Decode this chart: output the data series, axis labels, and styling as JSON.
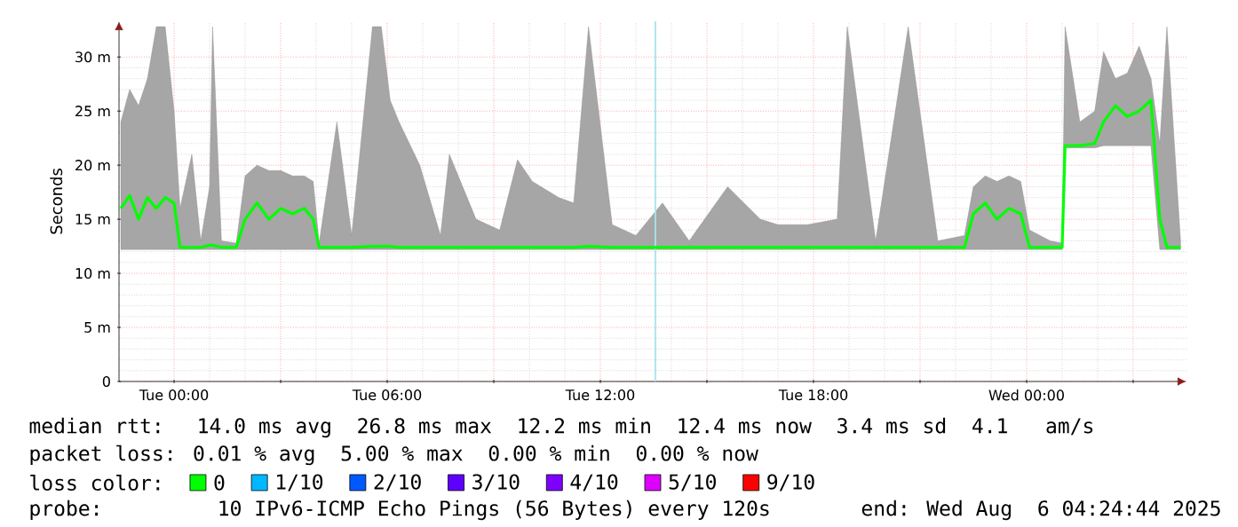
{
  "chart_data": {
    "type": "line",
    "ylabel": "Seconds",
    "legend_title": "loss color:",
    "legend": "bottom",
    "grid": true,
    "xlim": [
      "2025-08-04T22:27",
      "2025-08-06T04:30"
    ],
    "xticks": [
      {
        "value": "2025-08-05T00:00",
        "label": "Tue 00:00"
      },
      {
        "value": "2025-08-05T03:00",
        "label": null
      },
      {
        "value": "2025-08-05T06:00",
        "label": "Tue 06:00"
      },
      {
        "value": "2025-08-05T09:00",
        "label": null
      },
      {
        "value": "2025-08-05T12:00",
        "label": "Tue 12:00"
      },
      {
        "value": "2025-08-05T15:00",
        "label": null
      },
      {
        "value": "2025-08-05T18:00",
        "label": "Tue 18:00"
      },
      {
        "value": "2025-08-05T21:00",
        "label": null
      },
      {
        "value": "2025-08-06T00:00",
        "label": "Wed 00:00"
      },
      {
        "value": "2025-08-06T03:00",
        "label": null
      }
    ],
    "ylim": [
      0,
      33.3
    ],
    "yticks": [
      0,
      {
        "value": 5,
        "label": "5 m"
      },
      {
        "value": 10,
        "label": "10 m"
      },
      {
        "value": 15,
        "label": "15 m"
      },
      {
        "value": 20,
        "label": "20 m"
      },
      {
        "value": 25,
        "label": "25 m"
      },
      {
        "value": 30,
        "label": "30 m"
      }
    ],
    "x": [
      "2025-08-04T22:30",
      "2025-08-04T22:45",
      "2025-08-04T23:00",
      "2025-08-04T23:15",
      "2025-08-04T23:30",
      "2025-08-04T23:45",
      "2025-08-05T00:00",
      "2025-08-05T00:10",
      "2025-08-05T00:30",
      "2025-08-05T00:45",
      "2025-08-05T01:00",
      "2025-08-05T01:05",
      "2025-08-05T01:20",
      "2025-08-05T01:45",
      "2025-08-05T02:00",
      "2025-08-05T02:20",
      "2025-08-05T02:40",
      "2025-08-05T03:00",
      "2025-08-05T03:20",
      "2025-08-05T03:40",
      "2025-08-05T03:55",
      "2025-08-05T04:05",
      "2025-08-05T04:35",
      "2025-08-05T05:00",
      "2025-08-05T05:35",
      "2025-08-05T05:50",
      "2025-08-05T06:05",
      "2025-08-05T06:20",
      "2025-08-05T06:55",
      "2025-08-05T07:30",
      "2025-08-05T07:45",
      "2025-08-05T08:30",
      "2025-08-05T09:10",
      "2025-08-05T09:40",
      "2025-08-05T10:05",
      "2025-08-05T10:50",
      "2025-08-05T11:15",
      "2025-08-05T11:40",
      "2025-08-05T12:20",
      "2025-08-05T13:00",
      "2025-08-05T13:45",
      "2025-08-05T14:30",
      "2025-08-05T15:35",
      "2025-08-05T16:30",
      "2025-08-05T17:00",
      "2025-08-05T17:50",
      "2025-08-05T18:40",
      "2025-08-05T18:57",
      "2025-08-05T19:45",
      "2025-08-05T20:40",
      "2025-08-05T21:30",
      "2025-08-05T22:15",
      "2025-08-05T22:30",
      "2025-08-05T22:50",
      "2025-08-05T23:10",
      "2025-08-05T23:30",
      "2025-08-05T23:50",
      "2025-08-06T00:05",
      "2025-08-06T00:40",
      "2025-08-06T01:00",
      "2025-08-06T01:05",
      "2025-08-06T01:30",
      "2025-08-06T01:55",
      "2025-08-06T02:10",
      "2025-08-06T02:30",
      "2025-08-06T02:50",
      "2025-08-06T03:10",
      "2025-08-06T03:30",
      "2025-08-06T03:45",
      "2025-08-06T03:57",
      "2025-08-06T04:20"
    ],
    "series": [
      {
        "name": "0",
        "color": "#00ff00",
        "values": [
          16,
          17.2,
          15,
          17,
          16,
          17,
          16.5,
          12.4,
          12.4,
          12.4,
          12.6,
          12.6,
          12.4,
          12.4,
          15,
          16.5,
          15,
          16,
          15.5,
          16,
          15,
          12.4,
          12.4,
          12.4,
          12.5,
          12.5,
          12.5,
          12.4,
          12.4,
          12.4,
          12.4,
          12.4,
          12.4,
          12.4,
          12.4,
          12.4,
          12.4,
          12.5,
          12.4,
          12.4,
          12.4,
          12.4,
          12.4,
          12.4,
          12.4,
          12.4,
          12.4,
          12.4,
          12.4,
          12.4,
          12.4,
          12.4,
          15.5,
          16.5,
          15,
          16,
          15.5,
          12.4,
          12.4,
          12.4,
          21.8,
          21.8,
          22,
          24,
          25.5,
          24.5,
          25,
          26,
          15,
          12.4,
          12.4
        ],
        "lower": [
          12.2,
          12.2,
          12.2,
          12.2,
          12.2,
          12.2,
          12.2,
          12.2,
          12.2,
          12.2,
          12.2,
          12.2,
          12.2,
          12.2,
          12.2,
          12.2,
          12.2,
          12.2,
          12.2,
          12.2,
          12.2,
          12.2,
          12.2,
          12.2,
          12.2,
          12.2,
          12.2,
          12.2,
          12.2,
          12.2,
          12.2,
          12.2,
          12.2,
          12.2,
          12.2,
          12.2,
          12.2,
          12.2,
          12.2,
          12.2,
          12.2,
          12.2,
          12.2,
          12.2,
          12.2,
          12.2,
          12.2,
          12.2,
          12.2,
          12.2,
          12.2,
          12.2,
          12.2,
          12.2,
          12.2,
          12.2,
          12.2,
          12.2,
          12.2,
          12.2,
          21.6,
          21.6,
          21.6,
          21.8,
          21.8,
          21.8,
          21.8,
          21.8,
          12.2,
          12.2,
          12.2
        ],
        "upper": [
          24,
          27,
          25.5,
          28,
          32.8,
          32.8,
          25,
          16,
          21,
          13,
          18,
          32.8,
          13,
          12.8,
          19,
          20,
          19.5,
          19.5,
          19,
          19,
          18.5,
          12.8,
          24,
          13.5,
          32.8,
          32.8,
          26,
          24,
          20,
          13.5,
          21,
          15,
          14,
          20.5,
          18.5,
          17,
          16.5,
          32.8,
          14.5,
          13.5,
          16.5,
          13,
          18,
          15,
          14.5,
          14.5,
          15,
          32.8,
          13,
          32.8,
          13,
          13.5,
          18,
          19,
          18.5,
          19,
          18.5,
          14,
          13,
          12.8,
          32.8,
          24,
          25,
          30.5,
          28,
          28.5,
          31,
          28,
          22,
          32.8,
          13
        ]
      },
      {
        "name": "1/10",
        "color": "#00b8ff",
        "values": [
          null,
          null,
          null,
          null,
          null,
          null,
          null,
          null,
          null,
          null,
          null,
          null,
          null,
          null,
          null,
          null,
          null,
          null,
          null,
          null,
          null,
          null,
          null,
          null,
          null,
          null,
          null,
          null,
          null,
          null,
          null,
          null,
          null,
          null,
          null,
          null,
          null,
          null,
          null,
          null,
          null,
          null,
          null,
          null,
          null,
          null,
          null,
          null,
          null,
          null,
          null,
          null,
          null,
          null,
          null,
          null,
          null,
          null,
          null,
          null,
          null,
          null,
          null,
          null,
          null,
          null,
          null,
          null,
          null,
          null,
          null
        ]
      },
      {
        "name": "2/10",
        "color": "#0059ff",
        "values": [
          null,
          null,
          null,
          null,
          null,
          null,
          null,
          null,
          null,
          null,
          null,
          null,
          null,
          null,
          null,
          null,
          null,
          null,
          null,
          null,
          null,
          null,
          null,
          null,
          null,
          null,
          null,
          null,
          null,
          null,
          null,
          null,
          null,
          null,
          null,
          null,
          null,
          null,
          null,
          null,
          null,
          null,
          null,
          null,
          null,
          null,
          null,
          null,
          null,
          null,
          null,
          null,
          null,
          null,
          null,
          null,
          null,
          null,
          null,
          null,
          null,
          null,
          null,
          null,
          null,
          null,
          null,
          null,
          null,
          null,
          null
        ]
      },
      {
        "name": "3/10",
        "color": "#5e00ff",
        "values": [
          null,
          null,
          null,
          null,
          null,
          null,
          null,
          null,
          null,
          null,
          null,
          null,
          null,
          null,
          null,
          null,
          null,
          null,
          null,
          null,
          null,
          null,
          null,
          null,
          null,
          null,
          null,
          null,
          null,
          null,
          null,
          null,
          null,
          null,
          null,
          null,
          null,
          null,
          null,
          null,
          null,
          null,
          null,
          null,
          null,
          null,
          null,
          null,
          null,
          null,
          null,
          null,
          null,
          null,
          null,
          null,
          null,
          null,
          null,
          null,
          null,
          null,
          null,
          null,
          null,
          null,
          null,
          null,
          null,
          null,
          null
        ]
      },
      {
        "name": "4/10",
        "color": "#7e00ff",
        "values": [
          null,
          null,
          null,
          null,
          null,
          null,
          null,
          null,
          null,
          null,
          null,
          null,
          null,
          null,
          null,
          null,
          null,
          null,
          null,
          null,
          null,
          null,
          null,
          null,
          null,
          null,
          null,
          null,
          null,
          null,
          null,
          null,
          null,
          null,
          null,
          null,
          null,
          null,
          null,
          null,
          null,
          null,
          null,
          null,
          null,
          null,
          null,
          null,
          null,
          null,
          null,
          null,
          null,
          null,
          null,
          null,
          null,
          null,
          null,
          null,
          null,
          null,
          null,
          null,
          null,
          null,
          null,
          null,
          null,
          null,
          null
        ]
      },
      {
        "name": "5/10",
        "color": "#dd00ff",
        "values": [
          null,
          null,
          null,
          null,
          null,
          null,
          null,
          null,
          null,
          null,
          null,
          null,
          null,
          null,
          null,
          null,
          null,
          null,
          null,
          null,
          null,
          null,
          null,
          null,
          null,
          null,
          null,
          null,
          null,
          null,
          null,
          null,
          null,
          null,
          null,
          null,
          null,
          null,
          null,
          null,
          null,
          null,
          null,
          null,
          null,
          null,
          null,
          null,
          null,
          null,
          null,
          null,
          null,
          null,
          null,
          null,
          null,
          null,
          null,
          null,
          null,
          null,
          null,
          null,
          null,
          null,
          null,
          null,
          null,
          null,
          null
        ]
      },
      {
        "name": "9/10",
        "color": "#ff0000",
        "values": [
          null,
          null,
          null,
          null,
          null,
          null,
          null,
          null,
          null,
          null,
          null,
          null,
          null,
          null,
          null,
          null,
          null,
          null,
          null,
          null,
          null,
          null,
          null,
          null,
          null,
          null,
          null,
          null,
          null,
          null,
          null,
          null,
          null,
          null,
          null,
          null,
          null,
          null,
          null,
          null,
          null,
          null,
          null,
          null,
          null,
          null,
          null,
          null,
          null,
          null,
          null,
          null,
          null,
          null,
          null,
          null,
          null,
          null,
          null,
          null,
          null,
          null,
          null,
          null,
          null,
          null,
          null,
          null,
          null,
          null,
          null
        ]
      }
    ],
    "ref_lines": [
      {
        "axis": "x",
        "value": "2025-08-05T13:33",
        "color": "#a8e4f0"
      }
    ],
    "annotations": [
      "median rtt:  14.0 ms avg  26.8 ms max  12.2 ms min  12.4 ms now  3.4 ms sd  4.1   am/s",
      "packet loss: 0.01 % avg  5.00 % max  0.00 % min  0.00 % now",
      "probe:       10 IPv6-ICMP Echo Pings (56 Bytes) every 120s",
      "end: Wed Aug  6 04:24:44 2025"
    ]
  }
}
